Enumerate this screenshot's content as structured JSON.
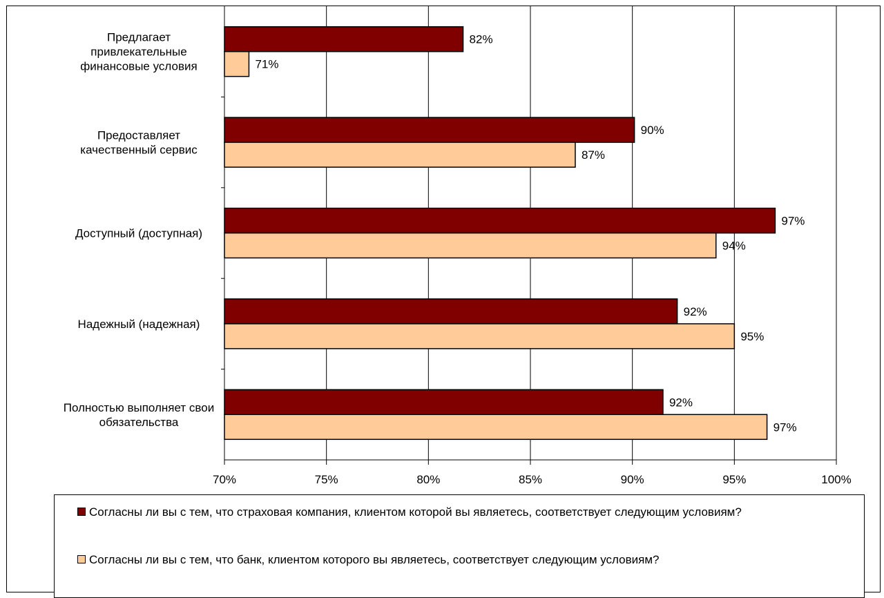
{
  "chart_data": {
    "type": "bar",
    "orientation": "horizontal",
    "categories": [
      "Предлагает привлекательные финансовые условия",
      "Предоставляет качественный сервис",
      "Доступный (доступная)",
      "Надежный (надежная)",
      "Полностью выполняет свои обязательства"
    ],
    "category_label_lines": [
      [
        "Предлагает",
        "привлекательные",
        "финансовые условия"
      ],
      [
        "Предоставляет",
        "качественный сервис"
      ],
      [
        "Доступный (доступная)"
      ],
      [
        "Надежный (надежная)"
      ],
      [
        "Полностью выполняет свои",
        "обязательства"
      ]
    ],
    "series": [
      {
        "name": "Согласны ли вы с тем, что страховая компания, клиентом которой вы являетесь, соответствует следующим условиям?",
        "color": "#800000",
        "values": [
          81.7,
          90.1,
          97.0,
          92.2,
          91.5
        ],
        "labels": [
          "82%",
          "90%",
          "97%",
          "92%",
          "92%"
        ]
      },
      {
        "name": "Согласны ли вы с тем, что банк, клиентом которого вы являетесь, соответствует следующим условиям?",
        "color": "#FFCC99",
        "values": [
          71.2,
          87.2,
          94.1,
          95.0,
          96.6
        ],
        "labels": [
          "71%",
          "87%",
          "94%",
          "95%",
          "97%"
        ]
      }
    ],
    "xlim": [
      70,
      100
    ],
    "xticks": [
      70,
      75,
      80,
      85,
      90,
      95,
      100
    ],
    "xtick_labels": [
      "70%",
      "75%",
      "80%",
      "85%",
      "90%",
      "95%",
      "100%"
    ],
    "grid": true,
    "legend_position": "bottom",
    "title": "",
    "xlabel": "",
    "ylabel": ""
  }
}
